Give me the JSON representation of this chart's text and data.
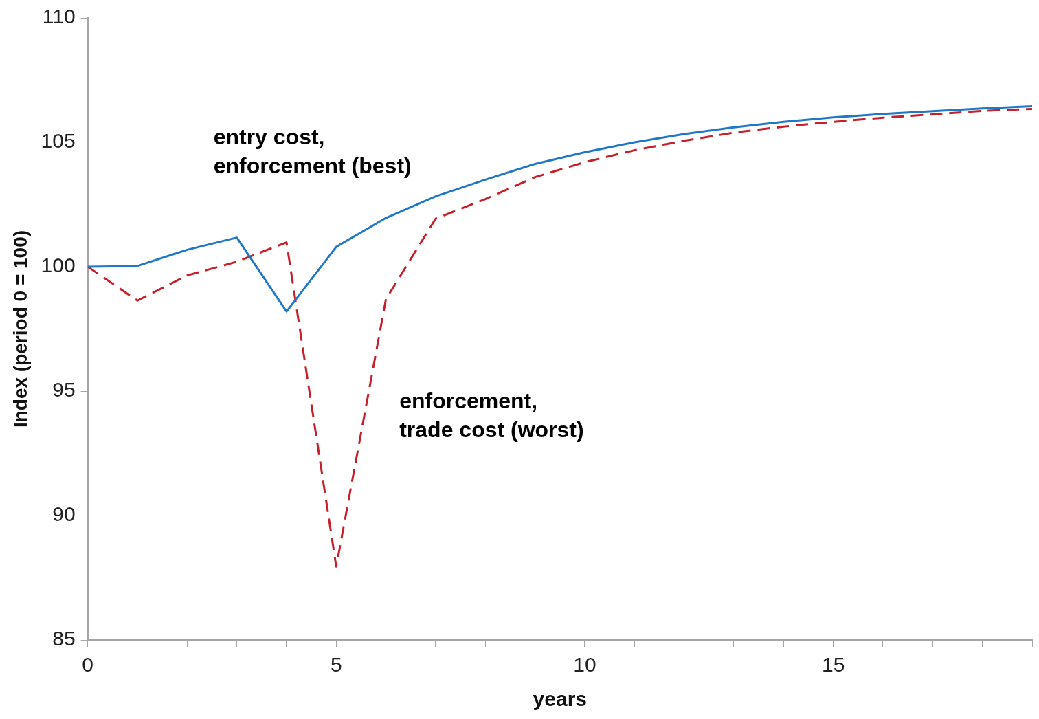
{
  "chart_data": {
    "type": "line",
    "xlabel": "years",
    "ylabel": "Index (period 0 = 100)",
    "x": [
      0,
      1,
      2,
      3,
      4,
      5,
      6,
      7,
      8,
      9,
      10,
      11,
      12,
      13,
      14,
      15,
      16,
      17,
      18,
      19
    ],
    "series": [
      {
        "name": "entry cost,\nenforcement (best)",
        "color": "#1f77c8",
        "line_style": "solid",
        "values": [
          100,
          100.03,
          100.68,
          101.17,
          98.2,
          100.8,
          101.96,
          102.83,
          103.5,
          104.13,
          104.6,
          105.0,
          105.33,
          105.6,
          105.82,
          106.0,
          106.14,
          106.25,
          106.36,
          106.45
        ]
      },
      {
        "name": "enforcement,\ntrade cost (worst)",
        "color": "#c8202a",
        "line_style": "dashed",
        "values": [
          100,
          98.64,
          99.65,
          100.2,
          100.98,
          87.95,
          98.7,
          101.93,
          102.72,
          103.6,
          104.2,
          104.68,
          105.06,
          105.39,
          105.63,
          105.82,
          105.99,
          106.12,
          106.26,
          106.34
        ]
      }
    ],
    "xlim": [
      0,
      19
    ],
    "xticks": [
      0,
      {
        "value": 1,
        "label": null
      },
      {
        "value": 2,
        "label": null
      },
      {
        "value": 3,
        "label": null
      },
      {
        "value": 4,
        "label": null
      },
      5,
      {
        "value": 6,
        "label": null
      },
      {
        "value": 7,
        "label": null
      },
      {
        "value": 8,
        "label": null
      },
      {
        "value": 9,
        "label": null
      },
      10,
      {
        "value": 11,
        "label": null
      },
      {
        "value": 12,
        "label": null
      },
      {
        "value": 13,
        "label": null
      },
      {
        "value": 14,
        "label": null
      },
      15,
      {
        "value": 16,
        "label": null
      },
      {
        "value": 17,
        "label": null
      },
      {
        "value": 18,
        "label": null
      },
      {
        "value": 19,
        "label": null
      }
    ],
    "ylim": [
      85,
      110
    ],
    "yticks": [
      85,
      90,
      95,
      100,
      105,
      110
    ],
    "grid": false,
    "legend": false,
    "marker": "none"
  }
}
